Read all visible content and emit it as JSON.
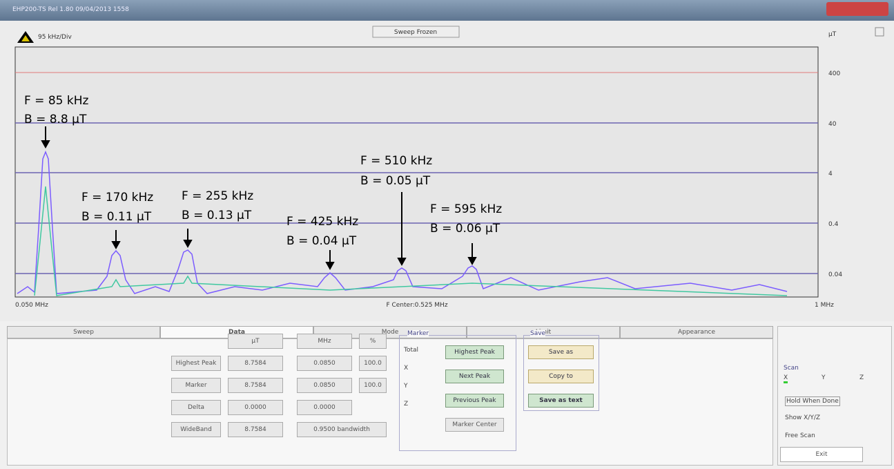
{
  "window": {
    "title": "EHP200-TS Rel 1.80 09/04/2013 1558"
  },
  "spectrum": {
    "div": "95 kHz/Div",
    "status": "Sweep Frozen",
    "unit": "µT",
    "y_labels": [
      "400",
      "40",
      "4",
      "0.4",
      "0.04"
    ],
    "x_start": "0.050 MHz",
    "x_center": "F Center:0.525 MHz",
    "x_end": "1 MHz"
  },
  "annotations": [
    {
      "f": "F = 85 kHz",
      "b": "B = 8.8 µT"
    },
    {
      "f": "F = 170 kHz",
      "b": "B = 0.11 µT"
    },
    {
      "f": "F = 255 kHz",
      "b": "B = 0.13 µT"
    },
    {
      "f": "F = 425 kHz",
      "b": "B = 0.04 µT"
    },
    {
      "f": "F = 510 kHz",
      "b": "B = 0.05 µT"
    },
    {
      "f": "F = 595 kHz",
      "b": "B = 0.06 µT"
    }
  ],
  "tabs": [
    "Sweep",
    "Data",
    "Mode",
    "Limit",
    "Appearance"
  ],
  "table": {
    "headers": [
      "µT",
      "MHz",
      "%"
    ],
    "rows": [
      [
        "Highest Peak",
        "8.7584",
        "0.0850",
        "100.0"
      ],
      [
        "Marker",
        "8.7584",
        "0.0850",
        "100.0"
      ],
      [
        "Delta",
        "0.0000",
        "0.0000"
      ],
      [
        "WideBand",
        "8.7584",
        "0.9500 bandwidth"
      ]
    ]
  },
  "marker": {
    "title": "Marker",
    "options": [
      "Total",
      "X",
      "Y",
      "Z"
    ],
    "buttons": [
      "Highest Peak",
      "Next Peak",
      "Previous Peak",
      "Marker Center"
    ]
  },
  "save": {
    "title": "Save",
    "buttons": [
      "Save as",
      "Copy to",
      "Save as text"
    ]
  },
  "scan": {
    "title": "Scan",
    "axes": [
      "X",
      "Y",
      "Z"
    ],
    "options": [
      "Hold When Done",
      "Show X/Y/Z"
    ],
    "free": "Free Scan",
    "exit": "Exit"
  }
}
